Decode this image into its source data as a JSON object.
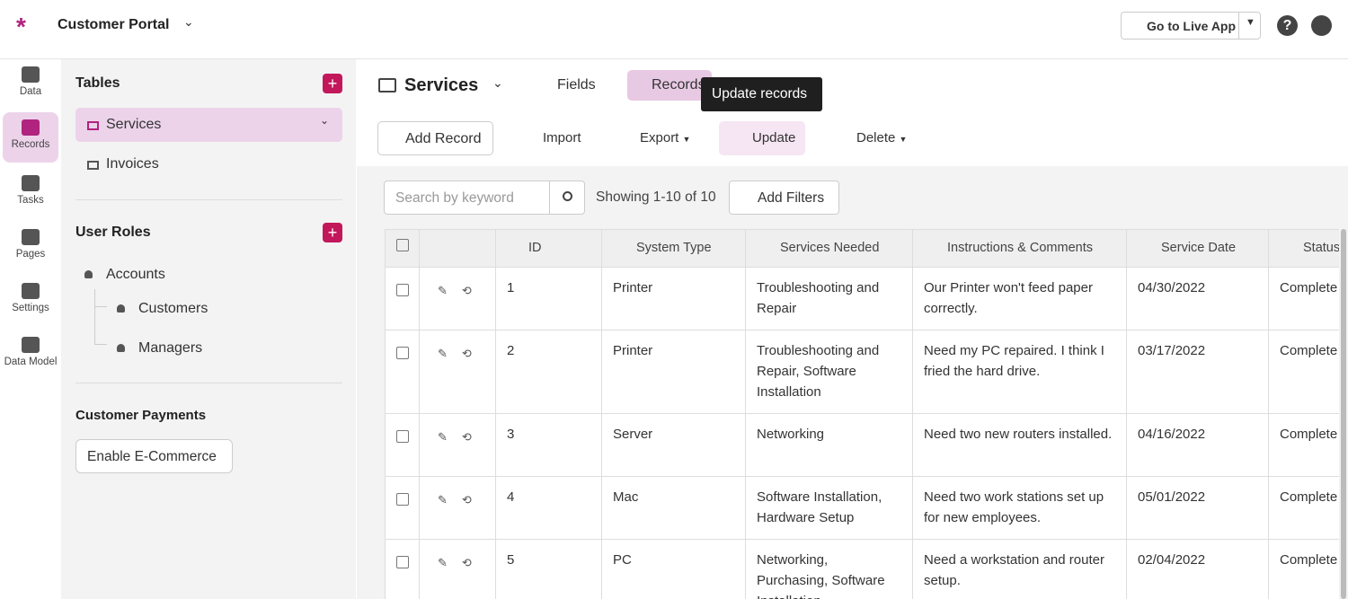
{
  "header": {
    "app_name": "Customer Portal",
    "live_app": "Go to Live App"
  },
  "nav": [
    "Data",
    "Records",
    "Tasks",
    "Pages",
    "Settings",
    "Data Model"
  ],
  "sidebar": {
    "tables_title": "Tables",
    "tables": [
      "Services",
      "Invoices"
    ],
    "roles_title": "User Roles",
    "roles": [
      "Accounts",
      "Customers",
      "Managers"
    ],
    "payments_title": "Customer Payments",
    "ecommerce": "Enable E-Commerce"
  },
  "main": {
    "title": "Services",
    "tabs": [
      "Fields",
      "Records"
    ],
    "tooltip": "Update records",
    "actions": [
      "Add Record",
      "Import",
      "Export",
      "Update",
      "Delete"
    ],
    "search_placeholder": "Search by keyword",
    "showing": "Showing 1-10 of 10",
    "filters": "Add Filters"
  },
  "table": {
    "columns": [
      "ID",
      "System Type",
      "Services Needed",
      "Instructions & Comments",
      "Service Date",
      "Status"
    ],
    "rows": [
      [
        1,
        "Printer",
        "Troubleshooting and Repair",
        "Our Printer won't feed paper correctly.",
        "04/30/2022",
        "Complete"
      ],
      [
        2,
        "Printer",
        "Troubleshooting and Repair, Software Installation",
        "Need my PC repaired. I think I fried the hard drive.",
        "03/17/2022",
        "Complete"
      ],
      [
        3,
        "Server",
        "Networking",
        "Need two new routers installed.",
        "04/16/2022",
        "Complete"
      ],
      [
        4,
        "Mac",
        "Software Installation, Hardware Setup",
        "Need two work stations set up for new employees.",
        "05/01/2022",
        "Complete"
      ],
      [
        5,
        "PC",
        "Networking, Purchasing, Software Installation",
        "Need a workstation and router setup.",
        "02/04/2022",
        "Complete"
      ]
    ]
  }
}
